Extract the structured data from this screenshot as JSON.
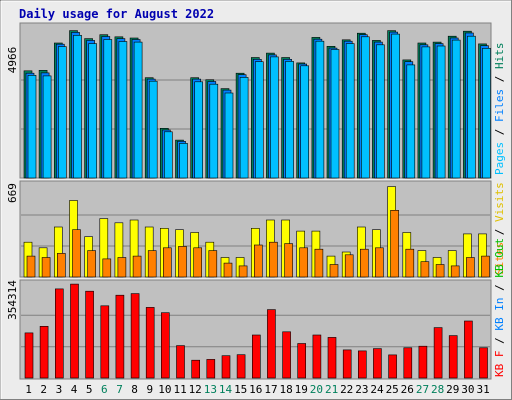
{
  "title": "Daily usage for August 2022",
  "colors": {
    "frame": "#ececec",
    "plot_bg": "#c0c0c0",
    "title": "#0000b0",
    "hits": "#00805c",
    "files": "#0080ff",
    "pages": "#00c0ff",
    "visits": "#ffff00",
    "sites": "#ff8000",
    "kbin": "#0080ff",
    "kbout": "#00c000",
    "kbf": "#ff0000",
    "text": "#000000",
    "weekend": "#00805c"
  },
  "panels": [
    {
      "name": "requests",
      "max_label": "4966",
      "legend": [
        {
          "text": "Hits",
          "color": "#00805c"
        },
        {
          "text": "Files",
          "color": "#0080ff"
        },
        {
          "text": "Pages",
          "color": "#00c0ff"
        }
      ]
    },
    {
      "name": "visits",
      "max_label": "669",
      "legend": [
        {
          "text": "Visits",
          "color": "#ffff00"
        },
        {
          "text": "Sites",
          "color": "#ff8000"
        }
      ]
    },
    {
      "name": "kbytes",
      "max_label": "354314",
      "legend": [
        {
          "text": "KB Out",
          "color": "#00c000"
        },
        {
          "text": "KB In",
          "color": "#0080ff"
        },
        {
          "text": "KB F",
          "color": "#ff0000"
        }
      ]
    }
  ],
  "days": [
    "1",
    "2",
    "3",
    "4",
    "5",
    "6",
    "7",
    "8",
    "9",
    "10",
    "11",
    "12",
    "13",
    "14",
    "15",
    "16",
    "17",
    "18",
    "19",
    "20",
    "21",
    "22",
    "23",
    "24",
    "25",
    "26",
    "27",
    "28",
    "29",
    "30",
    "31"
  ],
  "weekend_days": [
    "6",
    "7",
    "13",
    "14",
    "20",
    "21",
    "27",
    "28"
  ],
  "chart_data": [
    {
      "type": "bar",
      "title": "Daily usage for August 2022",
      "categories": [
        "1",
        "2",
        "3",
        "4",
        "5",
        "6",
        "7",
        "8",
        "9",
        "10",
        "11",
        "12",
        "13",
        "14",
        "15",
        "16",
        "17",
        "18",
        "19",
        "20",
        "21",
        "22",
        "23",
        "24",
        "25",
        "26",
        "27",
        "28",
        "29",
        "30",
        "31"
      ],
      "ylim": [
        0,
        4966
      ],
      "series": [
        {
          "name": "Hits",
          "values": [
            3620,
            3640,
            4560,
            4980,
            4710,
            4840,
            4770,
            4730,
            3390,
            1680,
            1280,
            3390,
            3320,
            3020,
            3540,
            4070,
            4220,
            4070,
            3890,
            4750,
            4450,
            4670,
            4890,
            4650,
            4980,
            3990,
            4560,
            4590,
            4790,
            4960,
            4530
          ]
        },
        {
          "name": "Files",
          "values": [
            3540,
            3550,
            4520,
            4920,
            4650,
            4780,
            4710,
            4680,
            3340,
            1620,
            1240,
            3340,
            3260,
            2970,
            3490,
            4010,
            4160,
            4010,
            3850,
            4690,
            4390,
            4620,
            4840,
            4590,
            4930,
            3930,
            4500,
            4540,
            4730,
            4900,
            4470
          ]
        },
        {
          "name": "Pages",
          "values": [
            3470,
            3450,
            4440,
            4820,
            4540,
            4680,
            4610,
            4590,
            3270,
            1560,
            1170,
            3250,
            3170,
            2870,
            3400,
            3930,
            4090,
            3940,
            3790,
            4620,
            4340,
            4540,
            4770,
            4500,
            4860,
            3820,
            4430,
            4460,
            4660,
            4790,
            4380
          ]
        }
      ]
    },
    {
      "type": "bar",
      "categories": [
        "1",
        "2",
        "3",
        "4",
        "5",
        "6",
        "7",
        "8",
        "9",
        "10",
        "11",
        "12",
        "13",
        "14",
        "15",
        "16",
        "17",
        "18",
        "19",
        "20",
        "21",
        "22",
        "23",
        "24",
        "25",
        "26",
        "27",
        "28",
        "29",
        "30",
        "31"
      ],
      "ylim": [
        0,
        669
      ],
      "series": [
        {
          "name": "Visits",
          "values": [
            250,
            210,
            360,
            550,
            290,
            420,
            390,
            410,
            360,
            350,
            340,
            320,
            250,
            140,
            140,
            350,
            410,
            410,
            330,
            330,
            150,
            180,
            360,
            340,
            650,
            320,
            190,
            140,
            190,
            310,
            310
          ]
        },
        {
          "name": "Sites",
          "values": [
            150,
            140,
            170,
            340,
            190,
            130,
            140,
            150,
            190,
            210,
            220,
            210,
            190,
            100,
            80,
            230,
            250,
            240,
            210,
            200,
            90,
            160,
            200,
            210,
            480,
            200,
            110,
            90,
            80,
            140,
            150
          ]
        }
      ]
    },
    {
      "type": "bar",
      "categories": [
        "1",
        "2",
        "3",
        "4",
        "5",
        "6",
        "7",
        "8",
        "9",
        "10",
        "11",
        "12",
        "13",
        "14",
        "15",
        "16",
        "17",
        "18",
        "19",
        "20",
        "21",
        "22",
        "23",
        "24",
        "25",
        "26",
        "27",
        "28",
        "29",
        "30",
        "31"
      ],
      "ylim": [
        0,
        354314
      ],
      "series": [
        {
          "name": "KB F",
          "values": [
            170000,
            195000,
            336000,
            354000,
            327000,
            272000,
            312000,
            318000,
            266000,
            246000,
            122000,
            67000,
            70000,
            84000,
            88000,
            162000,
            258000,
            174000,
            130000,
            162000,
            153000,
            106000,
            102000,
            111000,
            87000,
            114000,
            120000,
            190000,
            160000,
            215000,
            114000
          ]
        }
      ]
    }
  ]
}
